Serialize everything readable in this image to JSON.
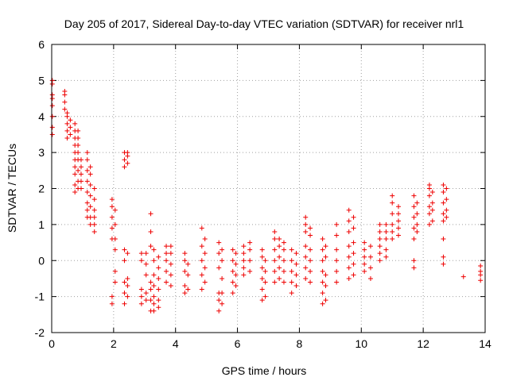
{
  "chart_data": {
    "type": "scatter",
    "title": "Day 205 of 2017, Sidereal Day-to-day VTEC variation (SDTVAR) for receiver nrl1",
    "xlabel": "GPS time / hours",
    "ylabel": "SDTVAR / TECUs",
    "xlim": [
      0,
      14
    ],
    "ylim": [
      -2,
      6
    ],
    "xticks": [
      0,
      2,
      4,
      6,
      8,
      10,
      12,
      14
    ],
    "yticks": [
      -2,
      -1,
      0,
      1,
      2,
      3,
      4,
      5,
      6
    ],
    "grid": true,
    "marker": "+",
    "color": "#ee0000",
    "series": [
      {
        "name": "SDTVAR",
        "clusters": [
          {
            "x": 0.02,
            "y": [
              3.5,
              3.7,
              4.0,
              4.3,
              4.5,
              4.6,
              4.9,
              5.0
            ]
          },
          {
            "x": 0.42,
            "y": [
              4.2,
              4.4,
              4.6,
              4.7
            ]
          },
          {
            "x": 0.5,
            "y": [
              3.4,
              3.6,
              3.8,
              4.0,
              4.1
            ]
          },
          {
            "x": 0.6,
            "y": [
              3.5,
              3.7,
              3.9
            ]
          },
          {
            "x": 0.75,
            "y": [
              1.9,
              2.1,
              2.4,
              2.6,
              2.8,
              3.0,
              3.2,
              3.4,
              3.6,
              3.8
            ]
          },
          {
            "x": 0.85,
            "y": [
              2.0,
              2.2,
              2.5,
              2.8,
              3.0,
              3.2,
              3.4,
              3.6
            ]
          },
          {
            "x": 0.95,
            "y": [
              2.0,
              2.2,
              2.4,
              2.6,
              2.8
            ]
          },
          {
            "x": 1.15,
            "y": [
              1.2,
              1.4,
              1.6,
              1.9,
              2.2,
              2.5,
              2.8,
              3.0
            ]
          },
          {
            "x": 1.25,
            "y": [
              1.0,
              1.2,
              1.5,
              1.8,
              2.1,
              2.4,
              2.6
            ]
          },
          {
            "x": 1.38,
            "y": [
              0.8,
              1.0,
              1.2,
              1.4,
              1.7,
              2.0
            ]
          },
          {
            "x": 1.95,
            "y": [
              -1.2,
              -1.0,
              0.6,
              0.9,
              1.2,
              1.5,
              1.7
            ]
          },
          {
            "x": 2.05,
            "y": [
              -0.6,
              -0.3,
              0.3,
              0.6,
              1.0,
              1.4
            ]
          },
          {
            "x": 2.35,
            "y": [
              -1.2,
              -0.9,
              -0.6,
              0.0,
              0.3,
              2.6,
              2.8,
              3.0
            ]
          },
          {
            "x": 2.45,
            "y": [
              -1.0,
              -0.7,
              -0.5,
              0.2,
              2.7,
              2.9,
              3.0
            ]
          },
          {
            "x": 2.9,
            "y": [
              -1.2,
              -1.0,
              -0.8,
              0.0,
              0.2
            ]
          },
          {
            "x": 3.05,
            "y": [
              -1.1,
              -0.9,
              -0.4,
              -0.1,
              0.2
            ]
          },
          {
            "x": 3.2,
            "y": [
              -1.4,
              -1.1,
              -0.8,
              -0.6,
              0.4,
              0.8,
              1.3
            ]
          },
          {
            "x": 3.3,
            "y": [
              -1.4,
              -1.2,
              -1.0,
              -0.7,
              -0.4,
              0.0,
              0.3
            ]
          },
          {
            "x": 3.45,
            "y": [
              -1.3,
              -1.1,
              -0.8,
              -0.5,
              -0.2,
              0.1
            ]
          },
          {
            "x": 3.7,
            "y": [
              -0.6,
              -0.3,
              0.0,
              0.2,
              0.4
            ]
          },
          {
            "x": 3.85,
            "y": [
              -0.7,
              -0.4,
              -0.1,
              0.2,
              0.4
            ]
          },
          {
            "x": 4.3,
            "y": [
              -0.9,
              -0.7,
              -0.3,
              0.0,
              0.2
            ]
          },
          {
            "x": 4.4,
            "y": [
              -0.8,
              -0.4,
              -0.1
            ]
          },
          {
            "x": 4.85,
            "y": [
              -0.8,
              -0.4,
              0.0,
              0.4,
              0.9
            ]
          },
          {
            "x": 4.95,
            "y": [
              -0.6,
              -0.2,
              0.2,
              0.6
            ]
          },
          {
            "x": 5.4,
            "y": [
              -1.4,
              -1.1,
              -0.9,
              -0.2,
              0.2,
              0.5
            ]
          },
          {
            "x": 5.5,
            "y": [
              -1.2,
              -0.9,
              -0.5,
              0.0,
              0.3
            ]
          },
          {
            "x": 5.85,
            "y": [
              -0.9,
              -0.6,
              -0.3,
              0.0,
              0.3
            ]
          },
          {
            "x": 5.95,
            "y": [
              -0.7,
              -0.4,
              -0.1,
              0.2
            ]
          },
          {
            "x": 6.2,
            "y": [
              -0.4,
              -0.2,
              0.0,
              0.2,
              0.4
            ]
          },
          {
            "x": 6.4,
            "y": [
              -0.3,
              0.0,
              0.3,
              0.5
            ]
          },
          {
            "x": 6.8,
            "y": [
              -1.1,
              -0.8,
              -0.5,
              -0.2,
              0.1,
              0.3
            ]
          },
          {
            "x": 6.9,
            "y": [
              -1.0,
              -0.6,
              -0.3,
              0.0
            ]
          },
          {
            "x": 7.2,
            "y": [
              -0.6,
              -0.3,
              0.0,
              0.3,
              0.6,
              0.8
            ]
          },
          {
            "x": 7.35,
            "y": [
              -0.5,
              -0.2,
              0.1,
              0.4,
              0.6
            ]
          },
          {
            "x": 7.5,
            "y": [
              -0.6,
              -0.3,
              0.0,
              0.3,
              0.5
            ]
          },
          {
            "x": 7.75,
            "y": [
              -0.9,
              -0.6,
              -0.3,
              0.0,
              0.3
            ]
          },
          {
            "x": 7.9,
            "y": [
              -0.7,
              -0.4,
              -0.1,
              0.2
            ]
          },
          {
            "x": 8.2,
            "y": [
              -0.5,
              -0.2,
              0.1,
              0.4,
              0.8,
              1.0,
              1.2
            ]
          },
          {
            "x": 8.35,
            "y": [
              -0.6,
              -0.3,
              0.0,
              0.3,
              0.7,
              0.9
            ]
          },
          {
            "x": 8.75,
            "y": [
              -1.2,
              -0.9,
              -0.6,
              -0.3,
              0.0,
              0.3,
              0.6
            ]
          },
          {
            "x": 8.85,
            "y": [
              -1.1,
              -0.7,
              -0.4,
              0.1,
              0.4
            ]
          },
          {
            "x": 9.2,
            "y": [
              -0.6,
              -0.3,
              0.0,
              0.3,
              0.7,
              1.0
            ]
          },
          {
            "x": 9.6,
            "y": [
              -0.5,
              -0.2,
              0.1,
              0.4,
              0.8,
              1.1,
              1.4
            ]
          },
          {
            "x": 9.75,
            "y": [
              -0.4,
              -0.1,
              0.2,
              0.5,
              0.9,
              1.2
            ]
          },
          {
            "x": 10.1,
            "y": [
              -0.3,
              -0.1,
              0.1,
              0.3,
              0.5
            ]
          },
          {
            "x": 10.3,
            "y": [
              -0.5,
              -0.2,
              0.1,
              0.4
            ]
          },
          {
            "x": 10.6,
            "y": [
              0.0,
              0.2,
              0.4,
              0.6,
              0.8,
              1.0
            ]
          },
          {
            "x": 10.8,
            "y": [
              0.1,
              0.3,
              0.6,
              0.8,
              1.0
            ]
          },
          {
            "x": 11.0,
            "y": [
              0.6,
              0.8,
              1.0,
              1.3,
              1.6,
              1.8
            ]
          },
          {
            "x": 11.2,
            "y": [
              0.7,
              0.9,
              1.1,
              1.3,
              1.5
            ]
          },
          {
            "x": 11.7,
            "y": [
              -0.2,
              0.0,
              0.6,
              0.9,
              1.2,
              1.5,
              1.8
            ]
          },
          {
            "x": 11.8,
            "y": [
              0.8,
              1.0,
              1.3,
              1.6
            ]
          },
          {
            "x": 12.2,
            "y": [
              1.0,
              1.3,
              1.5,
              1.8,
              2.0,
              2.1
            ]
          },
          {
            "x": 12.3,
            "y": [
              1.1,
              1.4,
              1.6,
              1.9
            ]
          },
          {
            "x": 12.65,
            "y": [
              -0.1,
              0.1,
              0.6,
              1.1,
              1.3,
              1.6,
              1.9,
              2.1
            ]
          },
          {
            "x": 12.75,
            "y": [
              1.2,
              1.4,
              1.7,
              2.0
            ]
          },
          {
            "x": 13.3,
            "y": [
              -0.45
            ]
          },
          {
            "x": 13.85,
            "y": [
              -0.55,
              -0.4,
              -0.3,
              -0.15
            ]
          }
        ]
      }
    ]
  }
}
